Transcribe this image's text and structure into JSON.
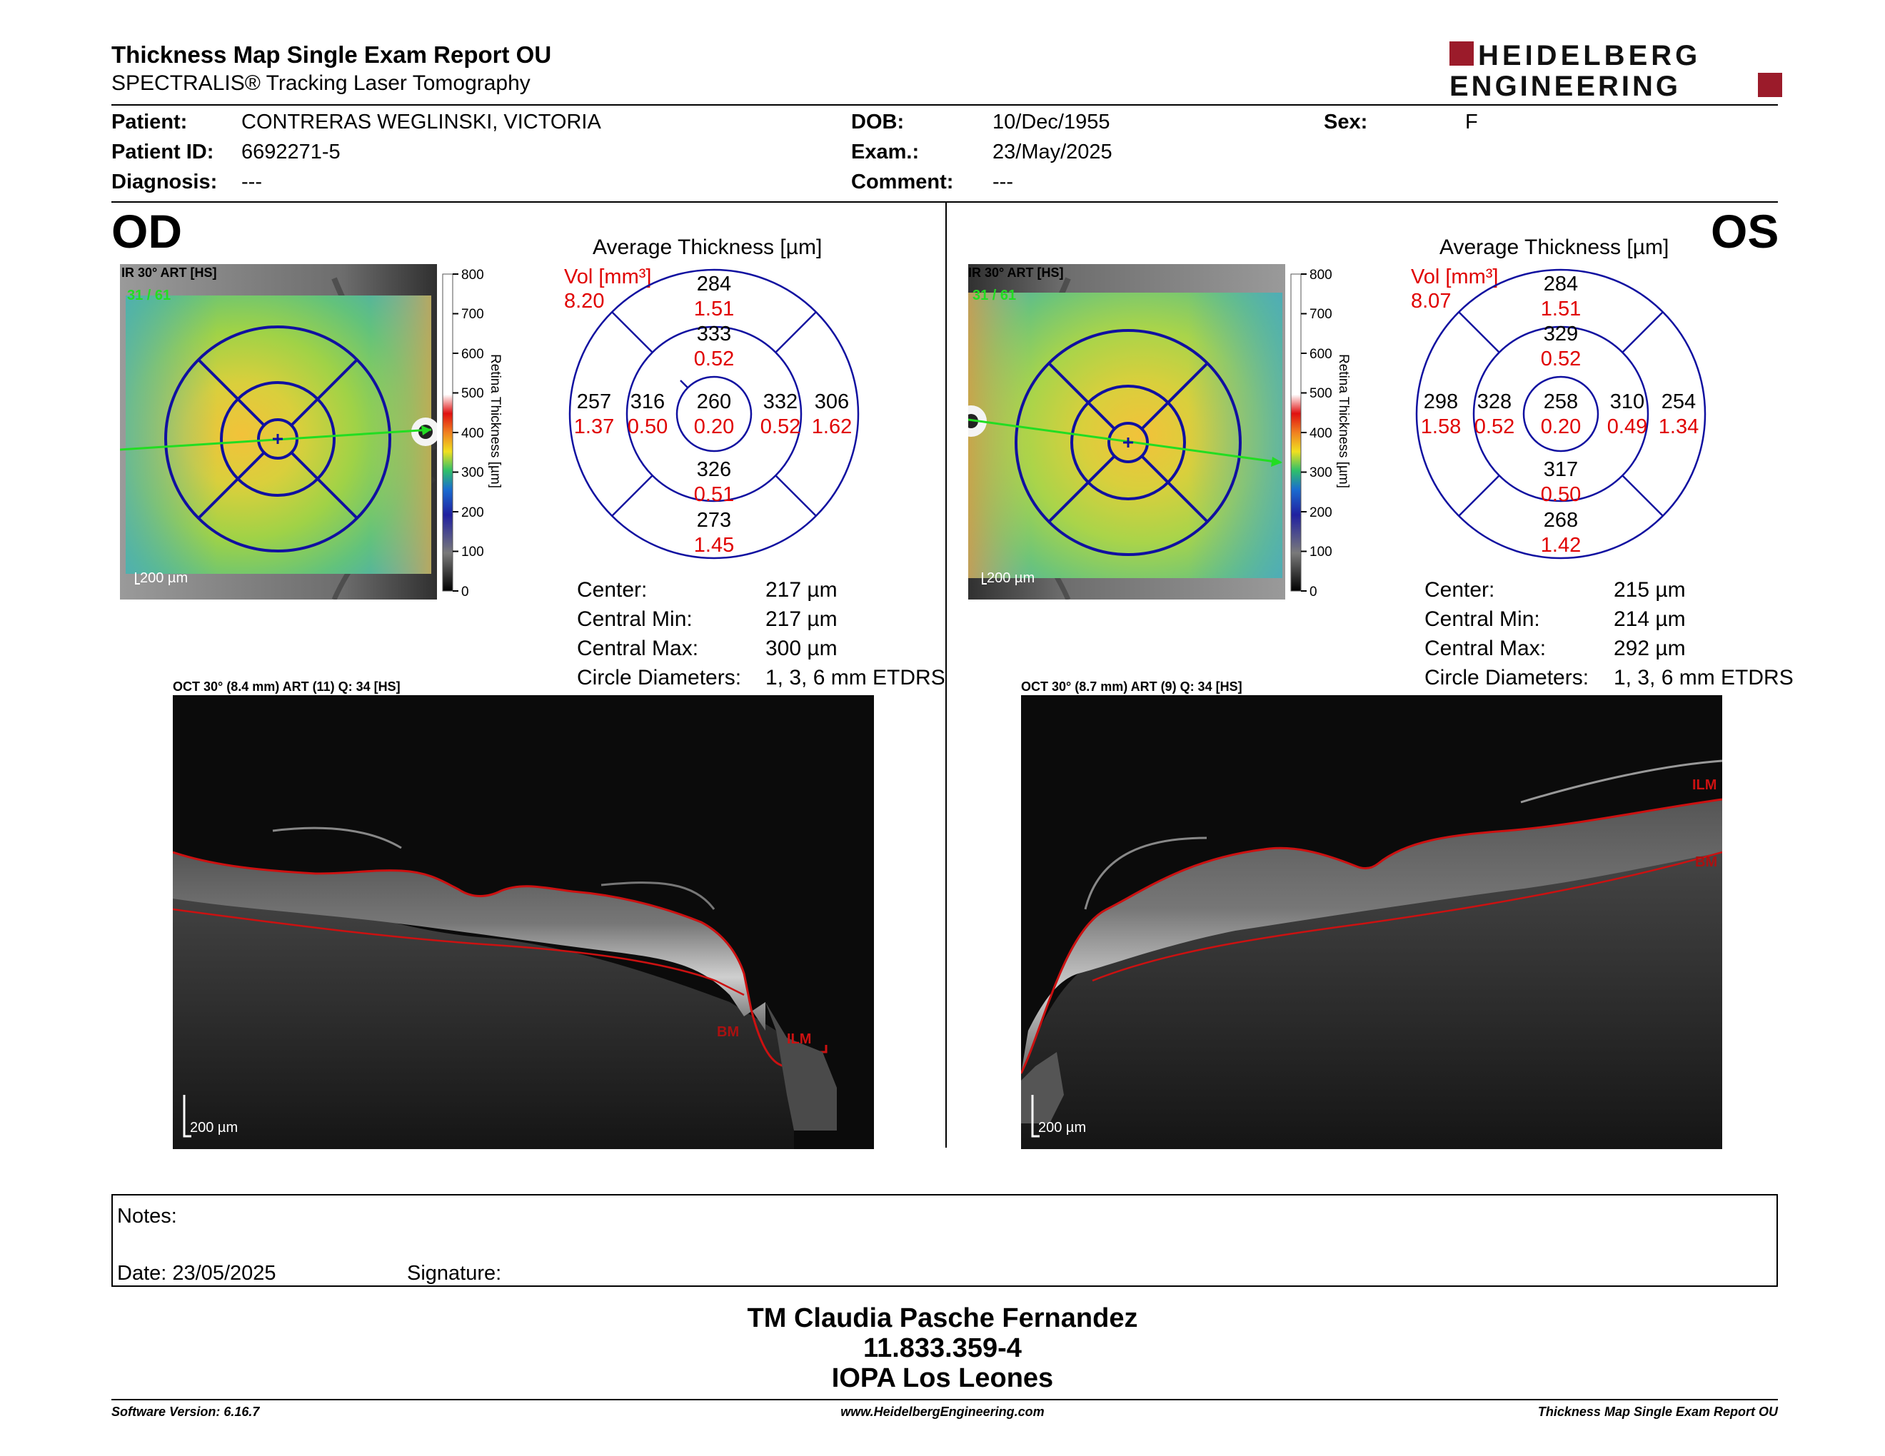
{
  "header": {
    "title": "Thickness Map Single Exam Report OU",
    "subtitle": "SPECTRALIS® Tracking Laser Tomography",
    "logo_line1": "HEIDELBERG",
    "logo_line2": "ENGINEERING"
  },
  "patient": {
    "patient_label": "Patient:",
    "patient_value": "CONTRERAS WEGLINSKI, VICTORIA",
    "id_label": "Patient ID:",
    "id_value": "6692271-5",
    "diagnosis_label": "Diagnosis:",
    "diagnosis_value": "---",
    "dob_label": "DOB:",
    "dob_value": "10/Dec/1955",
    "exam_label": "Exam.:",
    "exam_value": "23/May/2025",
    "comment_label": "Comment:",
    "comment_value": "---",
    "sex_label": "Sex:",
    "sex_value": "F"
  },
  "colorbar": {
    "ticks": [
      "800",
      "700",
      "600",
      "500",
      "400",
      "300",
      "200",
      "100",
      "0"
    ],
    "label": "Retina Thickness [µm]"
  },
  "od": {
    "eye": "OD",
    "ir_label": "IR 30° ART [HS]",
    "frame": "31 / 61",
    "scale": "200 µm",
    "avg_title": "Average Thickness [µm]",
    "vol_label": "Vol [mm³]",
    "vol_value": "8.20",
    "sectors": {
      "center": {
        "t": "260",
        "v": "0.20"
      },
      "inner_sup": {
        "t": "333",
        "v": "0.52"
      },
      "inner_inf": {
        "t": "326",
        "v": "0.51"
      },
      "inner_left": {
        "t": "316",
        "v": "0.50"
      },
      "inner_right": {
        "t": "332",
        "v": "0.52"
      },
      "outer_sup": {
        "t": "284",
        "v": "1.51"
      },
      "outer_inf": {
        "t": "273",
        "v": "1.45"
      },
      "outer_left": {
        "t": "257",
        "v": "1.37"
      },
      "outer_right": {
        "t": "306",
        "v": "1.62"
      }
    },
    "stats": [
      {
        "label": "Center:",
        "value": "217 µm"
      },
      {
        "label": "Central Min:",
        "value": "217 µm"
      },
      {
        "label": "Central Max:",
        "value": "300 µm"
      },
      {
        "label": "Circle Diameters:",
        "value": "1, 3, 6 mm ETDRS"
      }
    ],
    "oct_label": "OCT 30° (8.4 mm) ART (11) Q: 34 [HS]",
    "oct_scale": "200 µm",
    "ilm": "ILM",
    "bm": "BM"
  },
  "os": {
    "eye": "OS",
    "ir_label": "IR 30° ART [HS]",
    "frame": "31 / 61",
    "scale": "200 µm",
    "avg_title": "Average Thickness [µm]",
    "vol_label": "Vol [mm³]",
    "vol_value": "8.07",
    "sectors": {
      "center": {
        "t": "258",
        "v": "0.20"
      },
      "inner_sup": {
        "t": "329",
        "v": "0.52"
      },
      "inner_inf": {
        "t": "317",
        "v": "0.50"
      },
      "inner_left": {
        "t": "328",
        "v": "0.52"
      },
      "inner_right": {
        "t": "310",
        "v": "0.49"
      },
      "outer_sup": {
        "t": "284",
        "v": "1.51"
      },
      "outer_inf": {
        "t": "268",
        "v": "1.42"
      },
      "outer_left": {
        "t": "298",
        "v": "1.58"
      },
      "outer_right": {
        "t": "254",
        "v": "1.34"
      }
    },
    "stats": [
      {
        "label": "Center:",
        "value": "215 µm"
      },
      {
        "label": "Central Min:",
        "value": "214 µm"
      },
      {
        "label": "Central Max:",
        "value": "292 µm"
      },
      {
        "label": "Circle Diameters:",
        "value": "1, 3, 6 mm ETDRS"
      }
    ],
    "oct_label": "OCT 30° (8.7 mm) ART (9) Q: 34 [HS]",
    "oct_scale": "200 µm",
    "ilm": "ILM",
    "bm": "BM"
  },
  "notes": {
    "notes_label": "Notes:",
    "date_label": "Date: 23/05/2025",
    "signature_label": "Signature:"
  },
  "signer": {
    "name": "TM Claudia Pasche Fernandez",
    "rut": "11.833.359-4",
    "clinic": "IOPA Los Leones"
  },
  "footer": {
    "software": "Software Version: 6.16.7",
    "website": "www.HeidelbergEngineering.com",
    "report": "Thickness Map Single Exam Report OU"
  },
  "colors": {
    "brand_red": "#9b1b2a",
    "volume_red": "#e00000",
    "etdrs_blue": "#1010a0",
    "scan_green": "#22dd22",
    "layer_red": "#cc1111"
  }
}
